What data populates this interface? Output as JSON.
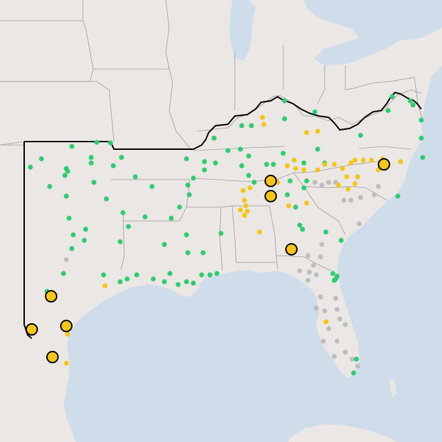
{
  "map": {
    "colors": {
      "water": "#cfdcea",
      "land": "#ebe7e4",
      "state_border": "#9a9a9a",
      "region_outline": "#000000",
      "marker_green": "#2ecc71",
      "marker_yellow": "#f5c518",
      "marker_gray": "#bdbdbd",
      "highlight_fill": "#f5c518",
      "highlight_stroke": "#000000"
    },
    "marker_legend": {
      "green": "green-site-marker",
      "yellow": "yellow-site-marker",
      "gray": "gray-site-marker",
      "highlight": "highlighted-site-marker"
    }
  }
}
